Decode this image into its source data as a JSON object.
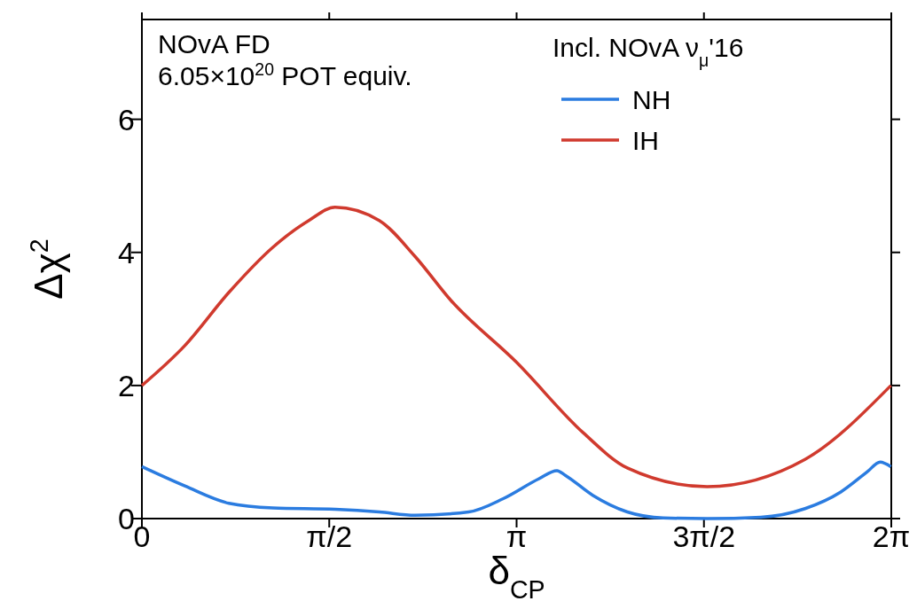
{
  "chart_data": {
    "type": "line",
    "xlabel": "δ$_{CP}$",
    "ylabel": "Δχ$^{2}$",
    "legend_title": "Incl. NOvA ν$_{μ}$'16",
    "legend": "top right",
    "annotations": [
      "NOvA FD",
      "6.05×10$^{20}$ POT equiv."
    ],
    "xlim": [
      0,
      6.2832
    ],
    "ylim": [
      0,
      7.5
    ],
    "xticks": [
      0,
      {
        "value": 1.5708,
        "label": "π/2"
      },
      {
        "value": 3.1416,
        "label": "π"
      },
      {
        "value": 4.7124,
        "label": "3π/2"
      },
      {
        "value": 6.2832,
        "label": "2π"
      }
    ],
    "yticks": [
      0,
      2,
      4,
      6
    ],
    "grid": false,
    "series": [
      {
        "name": "NH",
        "color": "#2b7ce0",
        "x": [
          0,
          0.36,
          0.73,
          1.1,
          1.62,
          1.99,
          2.29,
          2.74,
          3.03,
          3.33,
          3.48,
          3.55,
          3.78,
          4.07,
          4.37,
          4.74,
          5.19,
          5.56,
          5.86,
          6.08,
          6.19,
          6.28
        ],
        "values": [
          0.78,
          0.49,
          0.23,
          0.16,
          0.14,
          0.1,
          0.05,
          0.1,
          0.3,
          0.6,
          0.72,
          0.65,
          0.35,
          0.1,
          0.01,
          0,
          0.02,
          0.15,
          0.4,
          0.7,
          0.85,
          0.78
        ]
      },
      {
        "name": "IH",
        "color": "#d03a2e",
        "x": [
          0,
          0.36,
          0.73,
          1.1,
          1.4,
          1.62,
          1.99,
          2.29,
          2.59,
          3.14,
          3.7,
          4.07,
          4.74,
          5.56,
          6.28
        ],
        "values": [
          2.0,
          2.6,
          3.4,
          4.08,
          4.48,
          4.68,
          4.48,
          3.94,
          3.28,
          2.35,
          1.29,
          0.76,
          0.48,
          0.89,
          2.0
        ]
      }
    ]
  }
}
